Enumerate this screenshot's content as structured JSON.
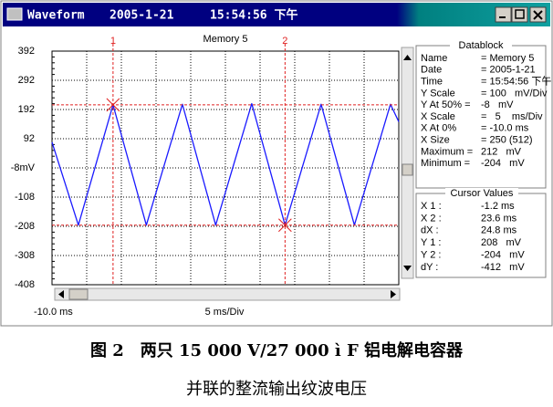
{
  "window": {
    "title": "Waveform",
    "date": "2005-1-21",
    "time": "15:54:56 下午"
  },
  "chart_data": {
    "type": "line",
    "title": "Memory 5",
    "x": [
      -10,
      -6.2,
      -1.2,
      3.6,
      8.8,
      13.6,
      18.8,
      23.6,
      28.8,
      33.6,
      38.8,
      40
    ],
    "series": [
      {
        "color": "#1a1aff",
        "values": [
          80,
          -204,
          208,
          -204,
          210,
          -204,
          212,
          -204,
          210,
          -204,
          210,
          150
        ]
      }
    ],
    "xlim": [
      -10,
      40
    ],
    "xticks": [
      {
        "value": -10,
        "label": "-10.0 ms"
      },
      {
        "value": -5,
        "label": null
      },
      {
        "value": 0,
        "label": null
      },
      {
        "value": 5,
        "label": null
      },
      {
        "value": 10,
        "label": null
      },
      {
        "value": 15,
        "label": null
      },
      {
        "value": 20,
        "label": null
      },
      {
        "value": 25,
        "label": null
      },
      {
        "value": 30,
        "label": null
      },
      {
        "value": 35,
        "label": null
      },
      {
        "value": 40,
        "label": null
      }
    ],
    "xlabel": "5 ms/Div",
    "ylim": [
      -408,
      392
    ],
    "yticks": [
      392,
      292,
      192,
      92,
      {
        "value": -8,
        "label": "-8mV"
      },
      -108,
      -208,
      -308,
      -408
    ],
    "grid": true,
    "cursors": [
      {
        "label": "1",
        "x": -1.2,
        "y": 208,
        "color": "#e02020"
      },
      {
        "label": "2",
        "x": 23.6,
        "y": -204,
        "color": "#e02020"
      }
    ]
  },
  "datablock": {
    "title": "Datablock",
    "rows": [
      [
        "Name",
        "= Memory 5"
      ],
      [
        "Date",
        "= 2005-1-21"
      ],
      [
        "Time",
        "= 15:54:56 下午"
      ],
      [
        "Y Scale",
        "= 100   mV/Div"
      ],
      [
        "Y At 50% =",
        "-8   mV"
      ],
      [
        "X Scale",
        "=   5    ms/Div"
      ],
      [
        "X At 0%",
        "= -10.0 ms"
      ],
      [
        "X Size",
        "= 250 (512)"
      ],
      [
        "Maximum =",
        "212   mV"
      ],
      [
        "Minimum =",
        "-204   mV"
      ]
    ]
  },
  "cursor_values": {
    "title": "Cursor Values",
    "rows": [
      [
        "X 1 :",
        "-1.2 ms"
      ],
      [
        "X 2 :",
        "23.6 ms"
      ],
      [
        "dX :",
        "24.8 ms"
      ],
      [
        "Y 1 :",
        "208   mV"
      ],
      [
        "Y 2 :",
        "-204   mV"
      ],
      [
        "dY :",
        "-412   mV"
      ]
    ]
  },
  "caption": {
    "line1": "图 2　两只 15 000 V/27 000 ì F 铝电解电容器",
    "line2": "并联的整流输出纹波电压"
  }
}
